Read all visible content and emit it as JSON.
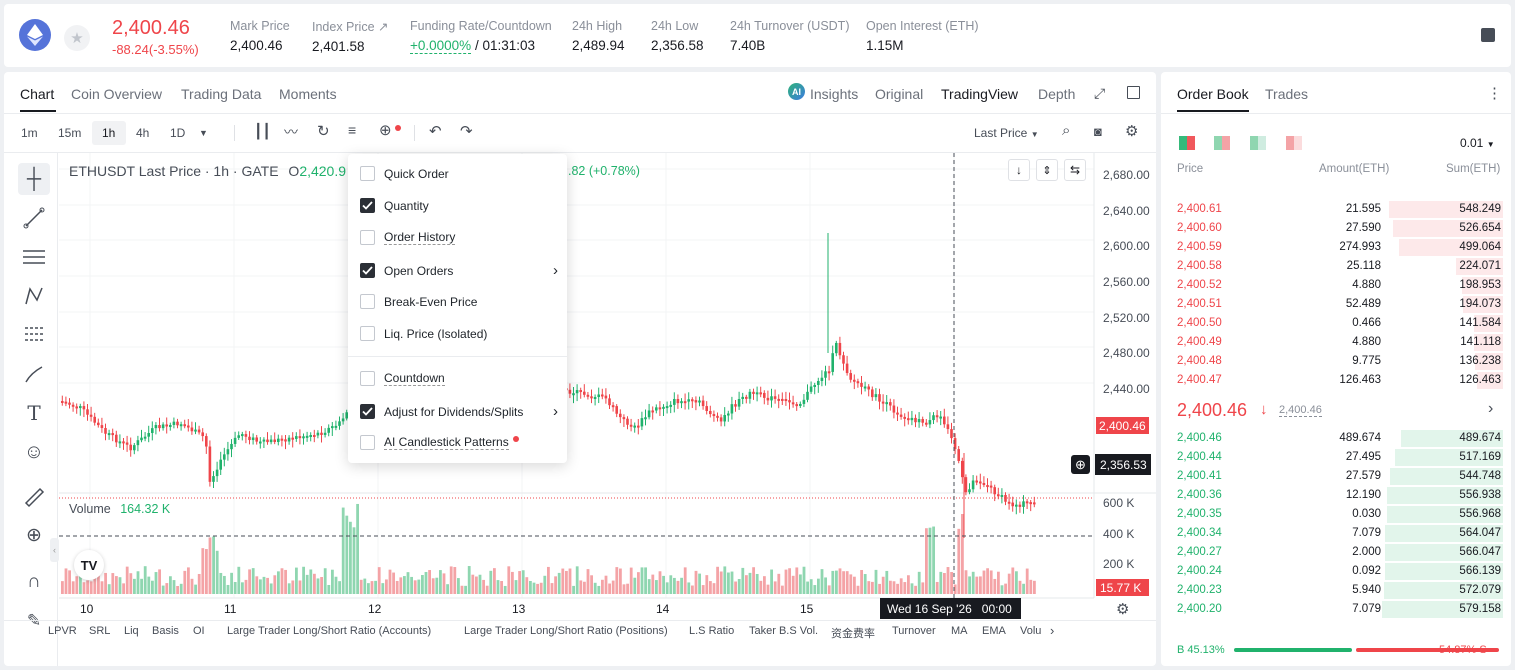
{
  "header": {
    "price": "2,400.46",
    "change": "-88.24(-3.55%)",
    "stats": [
      {
        "label": "Mark Price",
        "value": "2,400.46"
      },
      {
        "label": "Index Price ↗",
        "value": "2,401.58"
      },
      {
        "label": "Funding Rate/Countdown",
        "value": "+0.0000%",
        "value2": " / 01:31:03"
      },
      {
        "label": "24h High",
        "value": "2,489.94"
      },
      {
        "label": "24h Low",
        "value": "2,356.58"
      },
      {
        "label": "24h Turnover (USDT)",
        "value": "7.40B"
      },
      {
        "label": "Open Interest (ETH)",
        "value": "1.15M"
      }
    ]
  },
  "chart_tabs": [
    "Chart",
    "Coin Overview",
    "Trading Data",
    "Moments"
  ],
  "view_tabs": {
    "insights": "Insights",
    "original": "Original",
    "tradingview": "TradingView",
    "depth": "Depth"
  },
  "intervals": [
    "1m",
    "15m",
    "1h",
    "4h",
    "1D"
  ],
  "last_price_select": "Last Price",
  "legend": {
    "title": "ETHUSDT Last Price · 1h · GATE",
    "o_label": "O",
    "o_value": "2,420.9",
    "change": ".82 (+0.78%)"
  },
  "volume": {
    "label": "Volume",
    "value": "164.32 K"
  },
  "menu": [
    {
      "label": "Quick Order",
      "checked": false
    },
    {
      "label": "Quantity",
      "checked": true
    },
    {
      "label": "Order History",
      "checked": false
    },
    {
      "label": "Open Orders",
      "checked": true,
      "arrow": true
    },
    {
      "label": "Break-Even Price",
      "checked": false
    },
    {
      "label": "Liq. Price (Isolated)",
      "checked": false
    },
    {
      "label": "Countdown",
      "checked": false
    },
    {
      "label": "Adjust for Dividends/Splits",
      "checked": true,
      "arrow": true
    },
    {
      "label": "AI Candlestick Patterns",
      "checked": false,
      "dot": true
    }
  ],
  "y_labels": [
    "2,680.00",
    "2,640.00",
    "2,600.00",
    "2,560.00",
    "2,520.00",
    "2,480.00",
    "2,440.00"
  ],
  "price_tags": {
    "last": "2,400.46",
    "cross": "2,356.53",
    "vol": "15.77 K"
  },
  "vol_labels": [
    "600 K",
    "400 K",
    "200 K"
  ],
  "x_labels": [
    "10",
    "11",
    "12",
    "13",
    "14",
    "15"
  ],
  "crosshair_time": "Wed 16 Sep '26   00:00",
  "bottom_tabs": [
    "LPVR",
    "SRL",
    "Liq",
    "Basis",
    "OI",
    "Large Trader Long/Short Ratio (Accounts)",
    "Large Trader Long/Short Ratio (Positions)",
    "L.S Ratio",
    "Taker B.S Vol.",
    "资金费率",
    "Turnover",
    "MA",
    "EMA",
    "Volu"
  ],
  "orderbook": {
    "tabs": [
      "Order Book",
      "Trades"
    ],
    "precision": "0.01",
    "headers": [
      "Price",
      "Amount(ETH)",
      "Sum(ETH)"
    ],
    "asks": [
      [
        "2,400.61",
        "21.595",
        "548.249"
      ],
      [
        "2,400.60",
        "27.590",
        "526.654"
      ],
      [
        "2,400.59",
        "274.993",
        "499.064"
      ],
      [
        "2,400.58",
        "25.118",
        "224.071"
      ],
      [
        "2,400.52",
        "4.880",
        "198.953"
      ],
      [
        "2,400.51",
        "52.489",
        "194.073"
      ],
      [
        "2,400.50",
        "0.466",
        "141.584"
      ],
      [
        "2,400.49",
        "4.880",
        "141.118"
      ],
      [
        "2,400.48",
        "9.775",
        "136.238"
      ],
      [
        "2,400.47",
        "126.463",
        "126.463"
      ]
    ],
    "mid": {
      "price": "2,400.46",
      "arrow": "↓",
      "mark": "2,400.46"
    },
    "bids": [
      [
        "2,400.46",
        "489.674",
        "489.674"
      ],
      [
        "2,400.44",
        "27.495",
        "517.169"
      ],
      [
        "2,400.41",
        "27.579",
        "544.748"
      ],
      [
        "2,400.36",
        "12.190",
        "556.938"
      ],
      [
        "2,400.35",
        "0.030",
        "556.968"
      ],
      [
        "2,400.34",
        "7.079",
        "564.047"
      ],
      [
        "2,400.27",
        "2.000",
        "566.047"
      ],
      [
        "2,400.24",
        "0.092",
        "566.139"
      ],
      [
        "2,400.23",
        "5.940",
        "572.079"
      ],
      [
        "2,400.20",
        "7.079",
        "579.158"
      ]
    ],
    "buy_ratio": "B 45.13%",
    "sell_ratio": "54.87% S",
    "buy_pct": 45.13
  },
  "colors": {
    "up": "#20b26c",
    "down": "#ef454a",
    "up_light": "#8fd6b0",
    "down_light": "#f4a3a6"
  }
}
